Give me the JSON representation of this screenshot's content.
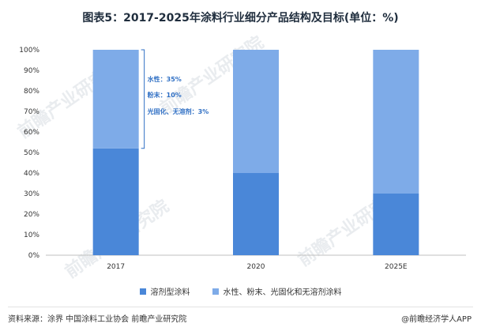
{
  "title": "图表5：2017-2025年涂料行业细分产品结构及目标(单位：%)",
  "watermark": "前瞻产业研究院",
  "colors": {
    "solvent": "#4a87d8",
    "other": "#7eabe8",
    "annotation": "#2f6fc4"
  },
  "chart_data": {
    "type": "bar",
    "stacked": true,
    "categories": [
      "2017",
      "2020",
      "2025E"
    ],
    "series": [
      {
        "name": "溶剂型涂料",
        "values": [
          52,
          40,
          30
        ]
      },
      {
        "name": "水性、粉末、光固化和无溶剂涂料",
        "values": [
          48,
          60,
          70
        ]
      }
    ],
    "yticks": [
      "0%",
      "10%",
      "20%",
      "30%",
      "40%",
      "50%",
      "60%",
      "70%",
      "80%",
      "90%",
      "100%"
    ],
    "ylim": [
      0,
      100
    ],
    "grid": false,
    "legend_position": "bottom",
    "annotations": [
      "水性：35%",
      "粉末：10%",
      "光固化、无溶剂：3%"
    ]
  },
  "footer": {
    "source": "资料来源：涂界 中国涂料工业协会 前瞻产业研究院",
    "brand": "@前瞻经济学人APP"
  }
}
